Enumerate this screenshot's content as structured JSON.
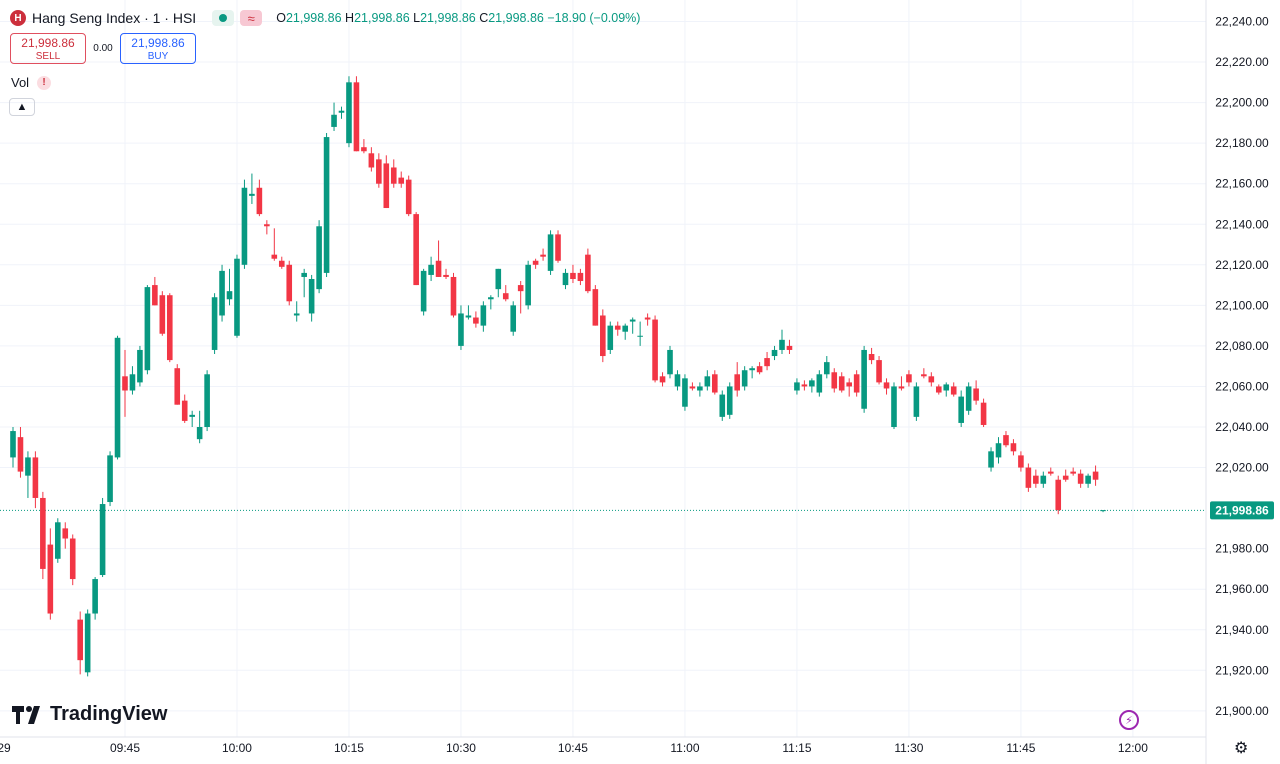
{
  "header": {
    "logo_letter": "H",
    "title": "Hang Seng Index · 1 · HSI",
    "wave_symbol": "≈",
    "o_label": "O",
    "o_value": "21,998.86",
    "h_label": "H",
    "h_value": "21,998.86",
    "l_label": "L",
    "l_value": "21,998.86",
    "c_label": "C",
    "c_value": "21,998.86",
    "change": "−18.90 (−0.09%)"
  },
  "trade": {
    "sell_price": "21,998.86",
    "sell_label": "SELL",
    "spread": "0.00",
    "buy_price": "21,998.86",
    "buy_label": "BUY"
  },
  "volume": {
    "label": "Vol",
    "warning": "!"
  },
  "branding": {
    "name": "TradingView"
  },
  "colors": {
    "up": "#089981",
    "down": "#f23645",
    "grid": "#f0f3fa",
    "price_line": "#089981"
  },
  "chart_data": {
    "type": "candlestick",
    "y_ticks": [
      "22,240.00",
      "22,220.00",
      "22,200.00",
      "22,180.00",
      "22,160.00",
      "22,140.00",
      "22,120.00",
      "22,100.00",
      "22,080.00",
      "22,060.00",
      "22,040.00",
      "22,020.00",
      "21,980.00",
      "21,960.00",
      "21,940.00",
      "21,920.00",
      "21,900.00"
    ],
    "y_tick_values": [
      22240,
      22220,
      22200,
      22180,
      22160,
      22140,
      22120,
      22100,
      22080,
      22060,
      22040,
      22020,
      21980,
      21960,
      21940,
      21920,
      21900
    ],
    "x_ticks": [
      "29",
      "09:45",
      "10:00",
      "10:15",
      "10:30",
      "10:45",
      "11:00",
      "11:15",
      "11:30",
      "11:45",
      "12:00"
    ],
    "x_tick_minutes": [
      -3,
      15,
      30,
      45,
      60,
      75,
      90,
      105,
      120,
      135,
      150
    ],
    "last_price": 21998.86,
    "last_price_label": "21,998.86",
    "candles": [
      [
        0,
        22025,
        22040,
        22020,
        22038
      ],
      [
        1,
        22035,
        22040,
        22015,
        22018
      ],
      [
        2,
        22016,
        22028,
        22005,
        22025
      ],
      [
        3,
        22025,
        22028,
        22000,
        22005
      ],
      [
        4,
        22005,
        22008,
        21965,
        21970
      ],
      [
        5,
        21982,
        21990,
        21945,
        21948
      ],
      [
        6,
        21975,
        21995,
        21973,
        21993
      ],
      [
        7,
        21990,
        21993,
        21980,
        21985
      ],
      [
        8,
        21985,
        21987,
        21962,
        21965
      ],
      [
        9,
        21945,
        21949,
        21918,
        21925
      ],
      [
        10,
        21919,
        21950,
        21917,
        21948
      ],
      [
        11,
        21948,
        21966,
        21945,
        21965
      ],
      [
        12,
        21967,
        22005,
        21966,
        22002
      ],
      [
        13,
        22003,
        22028,
        22001,
        22026
      ],
      [
        14,
        22025,
        22085,
        22024,
        22084
      ],
      [
        15,
        22065,
        22078,
        22045,
        22058
      ],
      [
        16,
        22058,
        22070,
        22056,
        22066
      ],
      [
        17,
        22062,
        22080,
        22060,
        22078
      ],
      [
        18,
        22068,
        22110,
        22066,
        22109
      ],
      [
        19,
        22110,
        22114,
        22100,
        22100
      ],
      [
        20,
        22105,
        22107,
        22085,
        22086
      ],
      [
        21,
        22105,
        22106,
        22072,
        22073
      ],
      [
        22,
        22069,
        22071,
        22051,
        22051
      ],
      [
        23,
        22053,
        22056,
        22042,
        22043
      ],
      [
        24,
        22045,
        22048,
        22040,
        22046
      ],
      [
        25,
        22034,
        22048,
        22032,
        22040
      ],
      [
        26,
        22040,
        22068,
        22038,
        22066
      ],
      [
        27,
        22078,
        22106,
        22076,
        22104
      ],
      [
        28,
        22095,
        22120,
        22092,
        22117
      ],
      [
        29,
        22103,
        22118,
        22100,
        22107
      ],
      [
        30,
        22085,
        22125,
        22084,
        22123
      ],
      [
        31,
        22120,
        22162,
        22118,
        22158
      ],
      [
        32,
        22154,
        22165,
        22150,
        22155
      ],
      [
        33,
        22158,
        22162,
        22144,
        22145
      ],
      [
        34,
        22140,
        22142,
        22135,
        22139
      ],
      [
        35,
        22125,
        22138,
        22122,
        22123
      ],
      [
        36,
        22122,
        22124,
        22118,
        22119
      ],
      [
        37,
        22120,
        22122,
        22100,
        22102
      ],
      [
        38,
        22095,
        22102,
        22092,
        22096
      ],
      [
        39,
        22114,
        22118,
        22104,
        22116
      ],
      [
        40,
        22096,
        22115,
        22092,
        22113
      ],
      [
        41,
        22108,
        22142,
        22106,
        22139
      ],
      [
        42,
        22116,
        22185,
        22114,
        22183
      ],
      [
        43,
        22188,
        22200,
        22186,
        22194
      ],
      [
        44,
        22195,
        22198,
        22192,
        22196
      ],
      [
        45,
        22180,
        22213,
        22178,
        22210
      ],
      [
        46,
        22210,
        22213,
        22176,
        22176
      ],
      [
        47,
        22178,
        22182,
        22175,
        22176
      ],
      [
        48,
        22175,
        22178,
        22166,
        22168
      ],
      [
        49,
        22172,
        22175,
        22158,
        22160
      ],
      [
        50,
        22170,
        22174,
        22148,
        22148
      ],
      [
        51,
        22168,
        22172,
        22158,
        22160
      ],
      [
        52,
        22163,
        22166,
        22158,
        22160
      ],
      [
        53,
        22162,
        22164,
        22144,
        22145
      ],
      [
        54,
        22145,
        22146,
        22110,
        22110
      ],
      [
        55,
        22097,
        22118,
        22095,
        22117
      ],
      [
        56,
        22115,
        22124,
        22112,
        22120
      ],
      [
        57,
        22122,
        22132,
        22114,
        22114
      ],
      [
        58,
        22115,
        22118,
        22113,
        22114
      ],
      [
        59,
        22114,
        22116,
        22094,
        22095
      ],
      [
        60,
        22080,
        22100,
        22078,
        22096
      ],
      [
        61,
        22094,
        22100,
        22093,
        22095
      ],
      [
        62,
        22094,
        22097,
        22089,
        22091
      ],
      [
        63,
        22090,
        22102,
        22087,
        22100
      ],
      [
        64,
        22103,
        22105,
        22098,
        22104
      ],
      [
        65,
        22108,
        22118,
        22104,
        22118
      ],
      [
        66,
        22106,
        22110,
        22102,
        22103
      ],
      [
        67,
        22087,
        22102,
        22085,
        22100
      ],
      [
        68,
        22110,
        22112,
        22096,
        22107
      ],
      [
        69,
        22100,
        22122,
        22098,
        22120
      ],
      [
        70,
        22122,
        22123,
        22118,
        22120
      ],
      [
        71,
        22125,
        22128,
        22122,
        22124
      ],
      [
        72,
        22117,
        22137,
        22115,
        22135
      ],
      [
        73,
        22135,
        22137,
        22121,
        22122
      ],
      [
        74,
        22110,
        22118,
        22108,
        22116
      ],
      [
        75,
        22116,
        22120,
        22111,
        22113
      ],
      [
        76,
        22116,
        22118,
        22110,
        22112
      ],
      [
        77,
        22125,
        22128,
        22106,
        22107
      ],
      [
        78,
        22108,
        22110,
        22090,
        22090
      ],
      [
        79,
        22095,
        22098,
        22072,
        22075
      ],
      [
        80,
        22078,
        22092,
        22076,
        22090
      ],
      [
        81,
        22090,
        22092,
        22085,
        22088
      ],
      [
        82,
        22087,
        22091,
        22083,
        22090
      ],
      [
        83,
        22092,
        22094,
        22086,
        22093
      ],
      [
        84,
        22085,
        22092,
        22080,
        22085
      ],
      [
        85,
        22094,
        22096,
        22090,
        22093
      ],
      [
        86,
        22093,
        22095,
        22062,
        22063
      ],
      [
        87,
        22065,
        22067,
        22060,
        22062
      ],
      [
        88,
        22066,
        22080,
        22064,
        22078
      ],
      [
        89,
        22060,
        22068,
        22058,
        22066
      ],
      [
        90,
        22050,
        22066,
        22048,
        22064
      ],
      [
        91,
        22060,
        22062,
        22058,
        22059
      ],
      [
        92,
        22058,
        22062,
        22055,
        22060
      ],
      [
        93,
        22060,
        22068,
        22058,
        22065
      ],
      [
        94,
        22066,
        22068,
        22056,
        22057
      ],
      [
        95,
        22045,
        22058,
        22043,
        22056
      ],
      [
        96,
        22046,
        22062,
        22044,
        22060
      ],
      [
        97,
        22066,
        22072,
        22055,
        22058
      ],
      [
        98,
        22060,
        22070,
        22058,
        22068
      ],
      [
        99,
        22068,
        22070,
        22064,
        22069
      ],
      [
        100,
        22070,
        22072,
        22066,
        22067
      ],
      [
        101,
        22074,
        22077,
        22068,
        22070
      ],
      [
        102,
        22075,
        22080,
        22073,
        22078
      ],
      [
        103,
        22078,
        22088,
        22076,
        22083
      ],
      [
        104,
        22080,
        22083,
        22076,
        22078
      ],
      [
        105,
        22058,
        22064,
        22056,
        22062
      ],
      [
        106,
        22061,
        22063,
        22058,
        22060
      ],
      [
        107,
        22060,
        22064,
        22057,
        22063
      ],
      [
        108,
        22057,
        22068,
        22055,
        22066
      ],
      [
        109,
        22066,
        22075,
        22064,
        22072
      ],
      [
        110,
        22067,
        22069,
        22057,
        22059
      ],
      [
        111,
        22065,
        22067,
        22057,
        22058
      ],
      [
        112,
        22062,
        22064,
        22055,
        22060
      ],
      [
        113,
        22066,
        22068,
        22055,
        22057
      ],
      [
        114,
        22049,
        22080,
        22047,
        22078
      ],
      [
        115,
        22076,
        22079,
        22071,
        22073
      ],
      [
        116,
        22073,
        22075,
        22061,
        22062
      ],
      [
        117,
        22062,
        22064,
        22056,
        22059
      ],
      [
        118,
        22040,
        22062,
        22039,
        22060
      ],
      [
        119,
        22060,
        22065,
        22058,
        22059
      ],
      [
        120,
        22066,
        22068,
        22060,
        22062
      ],
      [
        121,
        22045,
        22062,
        22043,
        22060
      ],
      [
        122,
        22066,
        22069,
        22064,
        22065
      ],
      [
        123,
        22065,
        22067,
        22060,
        22062
      ],
      [
        124,
        22060,
        22061,
        22056,
        22057
      ],
      [
        125,
        22058,
        22062,
        22055,
        22061
      ],
      [
        126,
        22060,
        22062,
        22055,
        22056
      ],
      [
        127,
        22042,
        22058,
        22040,
        22055
      ],
      [
        128,
        22048,
        22062,
        22046,
        22060
      ],
      [
        129,
        22059,
        22063,
        22051,
        22053
      ],
      [
        130,
        22052,
        22054,
        22040,
        22041
      ],
      [
        131,
        22020,
        22030,
        22018,
        22028
      ],
      [
        132,
        22025,
        22035,
        22022,
        22032
      ],
      [
        133,
        22036,
        22038,
        22030,
        22031
      ],
      [
        134,
        22032,
        22034,
        22026,
        22028
      ],
      [
        135,
        22026,
        22028,
        22018,
        22020
      ],
      [
        136,
        22020,
        22022,
        22008,
        22010
      ],
      [
        137,
        22016,
        22019,
        22010,
        22012
      ],
      [
        138,
        22012,
        22018,
        22010,
        22016
      ],
      [
        139,
        22018,
        22020,
        22016,
        22017
      ],
      [
        140,
        22014,
        22016,
        21997,
        21999
      ],
      [
        141,
        22016,
        22019,
        22013,
        22014
      ],
      [
        142,
        22018,
        22020,
        22016,
        22017
      ],
      [
        143,
        22017,
        22019,
        22010,
        22012
      ],
      [
        144,
        22012,
        22017,
        22010,
        22016
      ],
      [
        145,
        22018,
        22021,
        22011,
        22014
      ],
      [
        146,
        21999,
        21999,
        21998,
        21999
      ]
    ]
  }
}
